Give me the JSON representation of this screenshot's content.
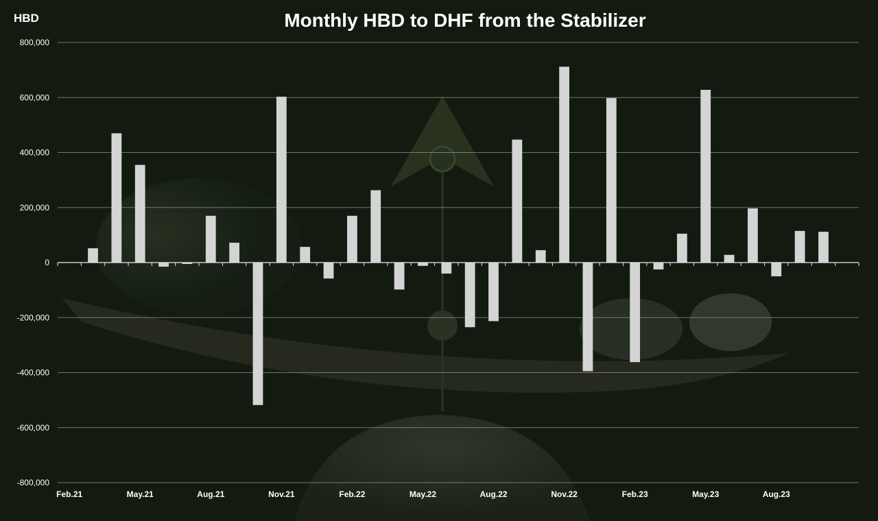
{
  "chart_data": {
    "type": "bar",
    "title": "Monthly HBD to DHF from the Stabilizer",
    "ylabel": "HBD",
    "xlabel": "",
    "ylim": [
      -800000,
      800000
    ],
    "yticks": [
      800000,
      600000,
      400000,
      200000,
      0,
      -200000,
      -400000,
      -600000,
      -800000
    ],
    "ytick_labels": [
      "800,000",
      "600,000",
      "400,000",
      "200,000",
      "0",
      "-200,000",
      "-400,000",
      "-600,000",
      "-800,000"
    ],
    "grid": true,
    "legend": "none",
    "categories": [
      "Feb.21",
      "Mar.21",
      "Apr.21",
      "May.21",
      "Jun.21",
      "Jul.21",
      "Aug.21",
      "Sep.21",
      "Oct.21",
      "Nov.21",
      "Dec.21",
      "Jan.22",
      "Feb.22",
      "Mar.22",
      "Apr.22",
      "May.22",
      "Jun.22",
      "Jul.22",
      "Aug.22",
      "Sep.22",
      "Oct.22",
      "Nov.22",
      "Dec.22",
      "Jan.23",
      "Feb.23",
      "Mar.23",
      "Apr.23",
      "May.23",
      "Jun.23",
      "Jul.23",
      "Aug.23",
      "Sep.23",
      "Oct.23",
      "Nov.23"
    ],
    "visible_x_labels": [
      "Feb.21",
      "May.21",
      "Aug.21",
      "Nov.21",
      "Feb.22",
      "May.22",
      "Aug.22",
      "Nov.22",
      "Feb.23",
      "May.23",
      "Aug.23"
    ],
    "values": [
      0,
      52000,
      470000,
      355000,
      -15000,
      -5000,
      170000,
      72000,
      -518000,
      603000,
      57000,
      -58000,
      170000,
      263000,
      -98000,
      -12000,
      -40000,
      -235000,
      -213000,
      447000,
      45000,
      712000,
      -395000,
      598000,
      -362000,
      -25000,
      105000,
      628000,
      28000,
      197000,
      -50000,
      115000,
      112000,
      0
    ],
    "colors": {
      "bar": "#d4d4d4",
      "grid": "#8a9a88",
      "text": "#ffffff",
      "axis": "#e8e8e8"
    }
  }
}
